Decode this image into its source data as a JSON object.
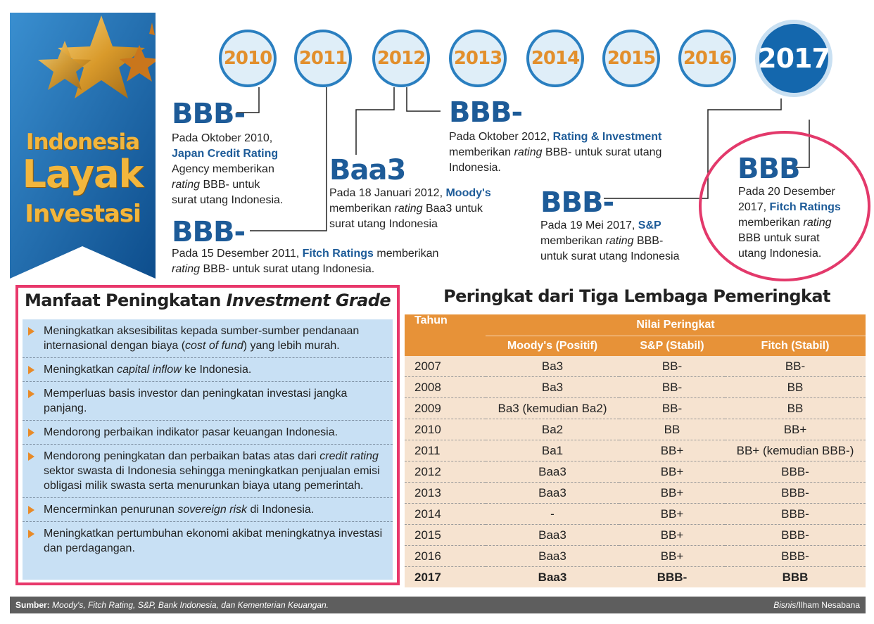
{
  "banner": {
    "line1": "Indonesia",
    "line2": "Layak",
    "line3": "Investasi"
  },
  "colors": {
    "blue": "#1d5b98",
    "orange": "#e79238",
    "pink": "#e8386b",
    "light_blue": "#c8e0f4",
    "peach": "#f6e3d0"
  },
  "years": [
    "2010",
    "2011",
    "2012",
    "2013",
    "2014",
    "2015",
    "2016",
    "2017"
  ],
  "timeline": {
    "e2010": {
      "rating": "BBB-",
      "t1": "Pada Oktober 2010,",
      "agency": "Japan Credit Rating",
      "t2": "Agency memberikan",
      "em": "rating",
      "t3": " BBB- untuk",
      "t4": "surat utang Indonesia."
    },
    "e2011": {
      "rating": "BBB-",
      "t1": "Pada 15 Desember 2011, ",
      "agency": "Fitch Ratings",
      "t2": " memberikan",
      "em": "rating",
      "t3": " BBB- untuk surat utang Indonesia."
    },
    "e2012a": {
      "rating": "Baa3",
      "t1": "Pada 18 Januari 2012, ",
      "agency": "Moody's",
      "t2": "memberikan ",
      "em": "rating",
      "t3": " Baa3 untuk",
      "t4": "surat utang Indonesia"
    },
    "e2012b": {
      "rating": "BBB-",
      "t1": "Pada Oktober 2012, ",
      "agency": "Rating & Investment",
      "t2": "memberikan ",
      "em": "rating",
      "t3": " BBB- untuk surat utang",
      "t4": "Indonesia."
    },
    "e2017a": {
      "rating": "BBB-",
      "t1": "Pada 19 Mei 2017, ",
      "agency": "S&P",
      "t2": "memberikan ",
      "em": "rating",
      "t3": " BBB-",
      "t4": "untuk surat utang Indonesia"
    },
    "e2017b": {
      "rating": "BBB",
      "t1": "Pada 20 Desember",
      "t2": "2017, ",
      "agency": "Fitch Ratings",
      "t3": "memberikan ",
      "em": "rating",
      "t4": "BBB untuk surat",
      "t5": "utang Indonesia."
    }
  },
  "benefits": {
    "title_pre": "Manfaat Peningkatan ",
    "title_em": "Investment Grade",
    "items": [
      {
        "a": "Meningkatkan aksesibilitas kepada sumber-sumber pendanaan internasional dengan biaya (",
        "em": "cost of fund",
        "b": ") yang lebih murah."
      },
      {
        "a": "Meningkatkan ",
        "em": "capital inflow",
        "b": " ke Indonesia."
      },
      {
        "a": "Memperluas basis investor dan peningkatan investasi jangka panjang.",
        "em": "",
        "b": ""
      },
      {
        "a": "Mendorong perbaikan indikator pasar keuangan Indonesia.",
        "em": "",
        "b": ""
      },
      {
        "a": "Mendorong peningkatan dan perbaikan batas atas dari ",
        "em": "credit rating",
        "b": " sektor swasta di Indonesia sehingga meningkatkan penjualan emisi obligasi milik swasta serta menurunkan biaya utang pemerintah."
      },
      {
        "a": "Mencerminkan penurunan ",
        "em": "sovereign risk",
        "b": " di Indonesia."
      },
      {
        "a": "Meningkatkan pertumbuhan ekonomi akibat meningkatnya investasi dan perdagangan.",
        "em": "",
        "b": ""
      }
    ]
  },
  "table": {
    "title": "Peringkat dari Tiga Lembaga Pemeringkat",
    "h_year": "Tahun",
    "h_group": "Nilai Peringkat",
    "h_cols": [
      "Moody's (Positif)",
      "S&P (Stabil)",
      "Fitch (Stabil)"
    ],
    "rows": [
      [
        "2007",
        "Ba3",
        "BB-",
        "BB-"
      ],
      [
        "2008",
        "Ba3",
        "BB-",
        "BB"
      ],
      [
        "2009",
        "Ba3 (kemudian Ba2)",
        "BB-",
        "BB"
      ],
      [
        "2010",
        "Ba2",
        "BB",
        "BB+"
      ],
      [
        "2011",
        "Ba1",
        "BB+",
        "BB+ (kemudian BBB-)"
      ],
      [
        "2012",
        "Baa3",
        "BB+",
        "BBB-"
      ],
      [
        "2013",
        "Baa3",
        "BB+",
        "BBB-"
      ],
      [
        "2014",
        "-",
        "BB+",
        "BBB-"
      ],
      [
        "2015",
        "Baa3",
        "BB+",
        "BBB-"
      ],
      [
        "2016",
        "Baa3",
        "BB+",
        "BBB-"
      ],
      [
        "2017",
        "Baa3",
        "BBB-",
        "BBB"
      ]
    ]
  },
  "footer": {
    "source_label": "Sumber:",
    "source_text": " Moody's, Fitch Rating, S&P, Bank Indonesia, dan Kementerian Keuangan.",
    "credit_em": "Bisnis",
    "credit_text": "/Ilham Nesabana"
  }
}
